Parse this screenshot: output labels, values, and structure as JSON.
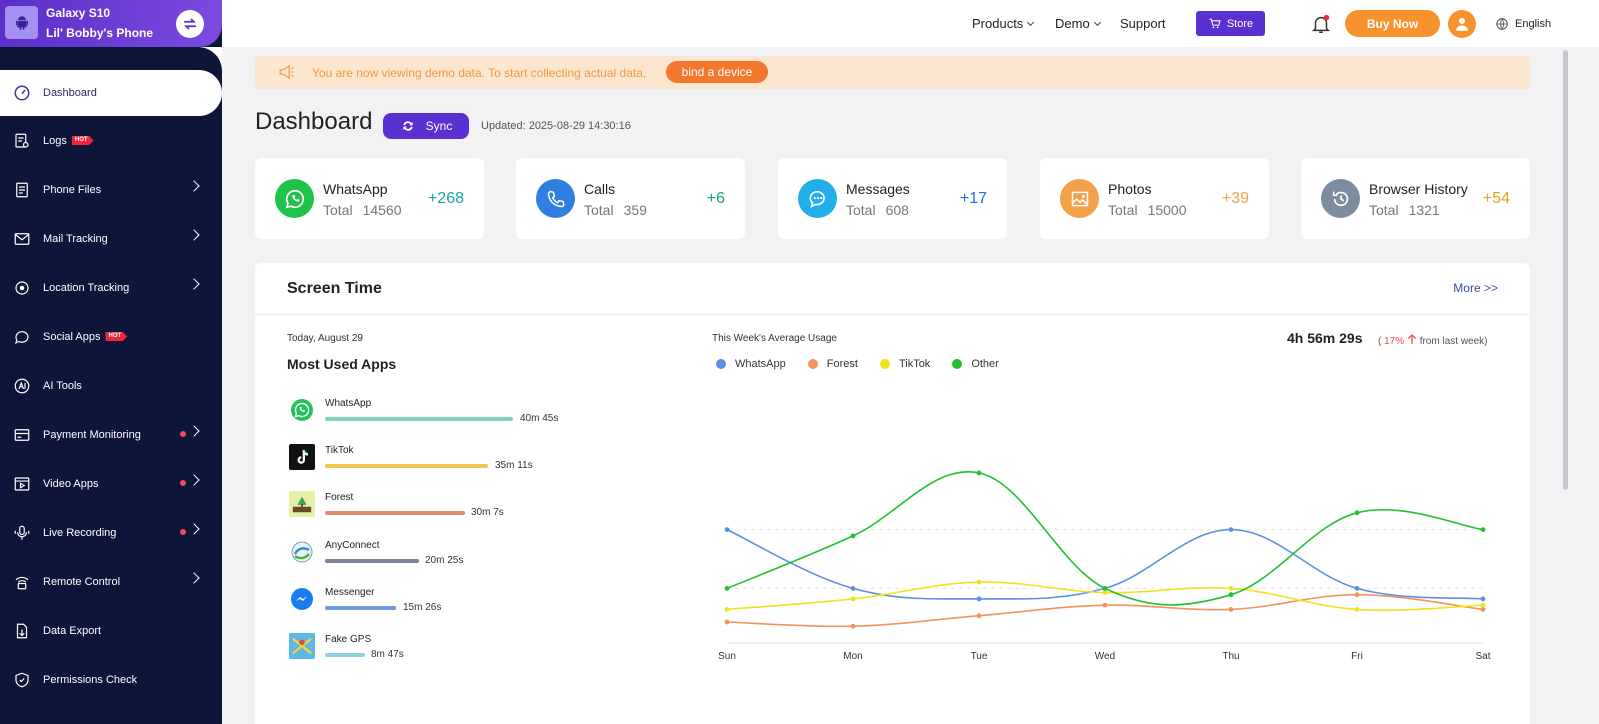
{
  "device": {
    "model": "Galaxy S10",
    "name": "Lil' Bobby's Phone"
  },
  "nav": {
    "items": [
      {
        "label": "Dashboard",
        "icon": "gauge-icon",
        "active": true
      },
      {
        "label": "Logs",
        "icon": "log-icon",
        "badge": "HOT"
      },
      {
        "label": "Phone Files",
        "icon": "file-icon"
      },
      {
        "label": "Mail Tracking",
        "icon": "mail-icon"
      },
      {
        "label": "Location Tracking",
        "icon": "location-icon"
      },
      {
        "label": "Social Apps",
        "icon": "chat-bubble-icon",
        "badge": "HOT"
      },
      {
        "label": "AI Tools",
        "icon": "ai-icon"
      },
      {
        "label": "Payment Monitoring",
        "icon": "card-icon"
      },
      {
        "label": "Video Apps",
        "icon": "video-icon"
      },
      {
        "label": "Live Recording",
        "icon": "microphone-icon"
      },
      {
        "label": "Remote Control",
        "icon": "remote-icon"
      },
      {
        "label": "Data Export",
        "icon": "export-icon"
      },
      {
        "label": "Permissions Check",
        "icon": "shield-icon"
      }
    ]
  },
  "header": {
    "products": "Products",
    "demo": "Demo",
    "support": "Support",
    "store": "Store",
    "buy_now": "Buy Now",
    "language": "English"
  },
  "banner": {
    "text": "You are now viewing demo data. To start collecting actual data,",
    "button": "bind a device"
  },
  "dashboard": {
    "title": "Dashboard",
    "sync": "Sync",
    "updated": "Updated: 2025-08-29 14:30:16"
  },
  "stats": [
    {
      "title": "WhatsApp",
      "total_label": "Total",
      "total": "14560",
      "delta": "+268",
      "color": "#1fc24a",
      "delta_color": "#1aa3a8"
    },
    {
      "title": "Calls",
      "total_label": "Total",
      "total": "359",
      "delta": "+6",
      "color": "#2f7fe0",
      "delta_color": "#1aa37a"
    },
    {
      "title": "Messages",
      "total_label": "Total",
      "total": "608",
      "delta": "+17",
      "color": "#22aee8",
      "delta_color": "#2a6bd6"
    },
    {
      "title": "Photos",
      "total_label": "Total",
      "total": "15000",
      "delta": "+39",
      "color": "#f2a04a",
      "delta_color": "#f0a04a"
    },
    {
      "title": "Browser History",
      "total_label": "Total",
      "total": "1321",
      "delta": "+54",
      "color": "#7d8da0",
      "delta_color": "#e0a020"
    }
  ],
  "screen_time": {
    "title": "Screen Time",
    "more": "More >>",
    "today": "Today, August 29",
    "most_used_title": "Most Used Apps",
    "apps": [
      {
        "name": "WhatsApp",
        "time": "40m 45s",
        "color": "#7ed4b8",
        "fraction": 1.0
      },
      {
        "name": "TikTok",
        "time": "35m 11s",
        "color": "#f0c550",
        "fraction": 0.863
      },
      {
        "name": "Forest",
        "time": "30m 7s",
        "color": "#e08a74",
        "fraction": 0.739
      },
      {
        "name": "AnyConnect",
        "time": "20m 25s",
        "color": "#7a8494",
        "fraction": 0.501
      },
      {
        "name": "Messenger",
        "time": "15m 26s",
        "color": "#6f97e8",
        "fraction": 0.379
      },
      {
        "name": "Fake GPS",
        "time": "8m 47s",
        "color": "#8fd0e0",
        "fraction": 0.216
      }
    ],
    "week_title": "This Week's Average Usage",
    "avg_total": "4h 56m 29s",
    "avg_open": "(",
    "avg_pct": "17%",
    "avg_from": "from last week)"
  },
  "chart_data": {
    "type": "line",
    "categories": [
      "Sun",
      "Mon",
      "Tue",
      "Wed",
      "Thu",
      "Fri",
      "Sat"
    ],
    "ylim": [
      0,
      10
    ],
    "grid": "dashed horizontal",
    "legend": "top-left",
    "series": [
      {
        "name": "WhatsApp",
        "color": "#5b8ee6",
        "values": [
          5.4,
          2.6,
          2.1,
          2.6,
          5.4,
          2.6,
          2.1
        ]
      },
      {
        "name": "Forest",
        "color": "#f2935e",
        "values": [
          1.0,
          0.8,
          1.3,
          1.8,
          1.6,
          2.3,
          1.6
        ]
      },
      {
        "name": "TikTok",
        "color": "#f2e21c",
        "values": [
          1.6,
          2.1,
          2.9,
          2.4,
          2.6,
          1.6,
          1.8
        ]
      },
      {
        "name": "Other",
        "color": "#22c22e",
        "values": [
          2.6,
          5.1,
          8.1,
          2.6,
          2.3,
          6.2,
          5.4
        ]
      }
    ]
  }
}
